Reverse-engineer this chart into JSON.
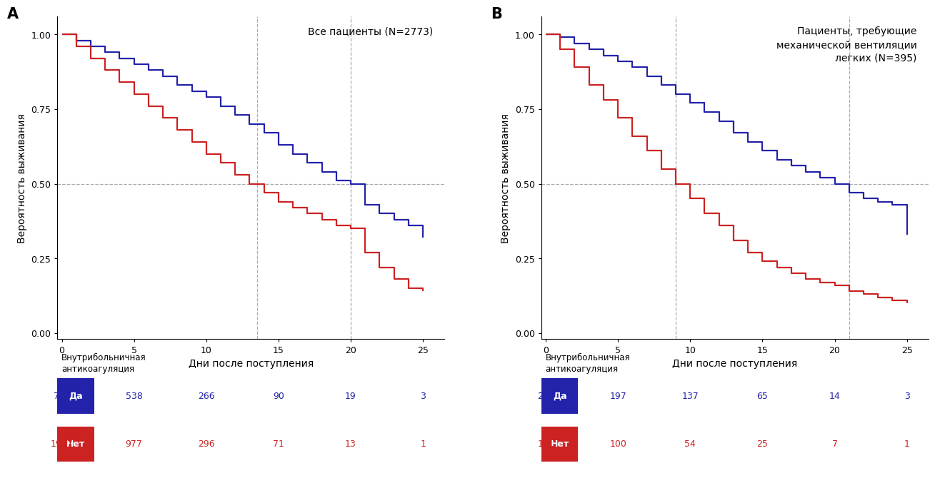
{
  "panel_A": {
    "title": "Все пациенты (N=2773)",
    "blue_x": [
      0,
      1,
      2,
      3,
      4,
      5,
      6,
      7,
      8,
      9,
      10,
      11,
      12,
      13,
      14,
      15,
      16,
      17,
      18,
      19,
      20,
      21,
      22,
      23,
      24,
      25
    ],
    "blue_y": [
      1.0,
      0.98,
      0.96,
      0.94,
      0.92,
      0.9,
      0.88,
      0.86,
      0.83,
      0.81,
      0.79,
      0.76,
      0.73,
      0.7,
      0.67,
      0.63,
      0.6,
      0.57,
      0.54,
      0.51,
      0.5,
      0.43,
      0.4,
      0.38,
      0.36,
      0.32
    ],
    "red_x": [
      0,
      1,
      2,
      3,
      4,
      5,
      6,
      7,
      8,
      9,
      10,
      11,
      12,
      13,
      14,
      15,
      16,
      17,
      18,
      19,
      20,
      21,
      22,
      23,
      24,
      25
    ],
    "red_y": [
      1.0,
      0.96,
      0.92,
      0.88,
      0.84,
      0.8,
      0.76,
      0.72,
      0.68,
      0.64,
      0.6,
      0.57,
      0.53,
      0.5,
      0.47,
      0.44,
      0.42,
      0.4,
      0.38,
      0.36,
      0.35,
      0.27,
      0.22,
      0.18,
      0.15,
      0.14
    ],
    "vline1_x": 13.5,
    "vline2_x": 20.0,
    "hline_y": 0.5,
    "risk_blue": [
      786,
      538,
      266,
      90,
      19,
      3
    ],
    "risk_red": [
      1987,
      977,
      296,
      71,
      13,
      1
    ],
    "risk_times": [
      0,
      5,
      10,
      15,
      20,
      25
    ]
  },
  "panel_B": {
    "title": "Пациенты, требующие\nмеханической вентиляции\nлегких (N=395)",
    "blue_x": [
      0,
      1,
      2,
      3,
      4,
      5,
      6,
      7,
      8,
      9,
      10,
      11,
      12,
      13,
      14,
      15,
      16,
      17,
      18,
      19,
      20,
      21,
      22,
      23,
      24,
      25
    ],
    "blue_y": [
      1.0,
      0.99,
      0.97,
      0.95,
      0.93,
      0.91,
      0.89,
      0.86,
      0.83,
      0.8,
      0.77,
      0.74,
      0.71,
      0.67,
      0.64,
      0.61,
      0.58,
      0.56,
      0.54,
      0.52,
      0.5,
      0.47,
      0.45,
      0.44,
      0.43,
      0.33
    ],
    "red_x": [
      0,
      1,
      2,
      3,
      4,
      5,
      6,
      7,
      8,
      9,
      10,
      11,
      12,
      13,
      14,
      15,
      16,
      17,
      18,
      19,
      20,
      21,
      22,
      23,
      24,
      25
    ],
    "red_y": [
      1.0,
      0.95,
      0.89,
      0.83,
      0.78,
      0.72,
      0.66,
      0.61,
      0.55,
      0.5,
      0.45,
      0.4,
      0.36,
      0.31,
      0.27,
      0.24,
      0.22,
      0.2,
      0.18,
      0.17,
      0.16,
      0.14,
      0.13,
      0.12,
      0.11,
      0.1
    ],
    "vline1_x": 9.0,
    "vline2_x": 21.0,
    "hline_y": 0.5,
    "risk_blue": [
      234,
      197,
      137,
      65,
      14,
      3
    ],
    "risk_red": [
      161,
      100,
      54,
      25,
      7,
      1
    ],
    "risk_times": [
      0,
      5,
      10,
      15,
      20,
      25
    ]
  },
  "blue_color": "#2222AA",
  "red_color": "#CC2222",
  "ylabel": "Вероятность выживания",
  "xlabel": "Дни после поступления",
  "legend_label_yes": "Да",
  "legend_label_no": "Нет",
  "legend_title": "Внутрибольничная\nантикоагуляция",
  "bg_color": "#FFFFFF",
  "panel_label_A": "А",
  "panel_label_B": "В",
  "xlim": [
    -0.3,
    26.5
  ],
  "ylim": [
    -0.02,
    1.06
  ]
}
